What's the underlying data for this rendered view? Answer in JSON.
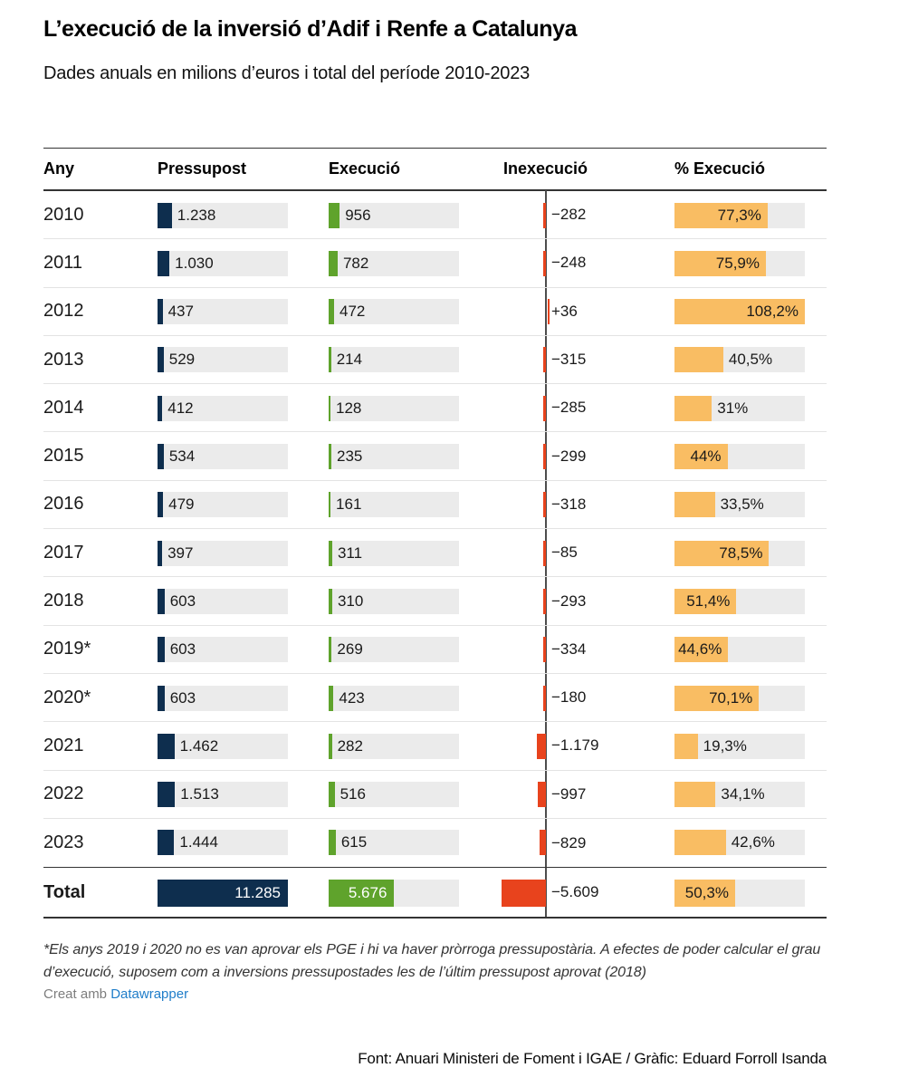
{
  "header": {
    "title": "L’execució de la inversió d’Adif i Renfe a Catalunya",
    "subtitle": "Dades anuals en milions d’euros i total del període 2010-2023"
  },
  "table": {
    "columns": [
      "Any",
      "Pressupost",
      "Execució",
      "Inexecució",
      "% Execució"
    ],
    "rows": [
      {
        "any": "2010",
        "pressupost_label": "1.238",
        "pressupost": 1238,
        "execucio_label": "956",
        "execucio": 956,
        "inexecucio_label": "−282",
        "inexecucio": -282,
        "pct_label": "77,3%",
        "pct": 77.3
      },
      {
        "any": "2011",
        "pressupost_label": "1.030",
        "pressupost": 1030,
        "execucio_label": "782",
        "execucio": 782,
        "inexecucio_label": "−248",
        "inexecucio": -248,
        "pct_label": "75,9%",
        "pct": 75.9
      },
      {
        "any": "2012",
        "pressupost_label": "437",
        "pressupost": 437,
        "execucio_label": "472",
        "execucio": 472,
        "inexecucio_label": "+36",
        "inexecucio": 36,
        "pct_label": "108,2%",
        "pct": 108.2
      },
      {
        "any": "2013",
        "pressupost_label": "529",
        "pressupost": 529,
        "execucio_label": "214",
        "execucio": 214,
        "inexecucio_label": "−315",
        "inexecucio": -315,
        "pct_label": "40,5%",
        "pct": 40.5
      },
      {
        "any": "2014",
        "pressupost_label": "412",
        "pressupost": 412,
        "execucio_label": "128",
        "execucio": 128,
        "inexecucio_label": "−285",
        "inexecucio": -285,
        "pct_label": "31%",
        "pct": 31
      },
      {
        "any": "2015",
        "pressupost_label": "534",
        "pressupost": 534,
        "execucio_label": "235",
        "execucio": 235,
        "inexecucio_label": "−299",
        "inexecucio": -299,
        "pct_label": "44%",
        "pct": 44
      },
      {
        "any": "2016",
        "pressupost_label": "479",
        "pressupost": 479,
        "execucio_label": "161",
        "execucio": 161,
        "inexecucio_label": "−318",
        "inexecucio": -318,
        "pct_label": "33,5%",
        "pct": 33.5
      },
      {
        "any": "2017",
        "pressupost_label": "397",
        "pressupost": 397,
        "execucio_label": "311",
        "execucio": 311,
        "inexecucio_label": "−85",
        "inexecucio": -85,
        "pct_label": "78,5%",
        "pct": 78.5
      },
      {
        "any": "2018",
        "pressupost_label": "603",
        "pressupost": 603,
        "execucio_label": "310",
        "execucio": 310,
        "inexecucio_label": "−293",
        "inexecucio": -293,
        "pct_label": "51,4%",
        "pct": 51.4
      },
      {
        "any": "2019*",
        "pressupost_label": "603",
        "pressupost": 603,
        "execucio_label": "269",
        "execucio": 269,
        "inexecucio_label": "−334",
        "inexecucio": -334,
        "pct_label": "44,6%",
        "pct": 44.6
      },
      {
        "any": "2020*",
        "pressupost_label": "603",
        "pressupost": 603,
        "execucio_label": "423",
        "execucio": 423,
        "inexecucio_label": "−180",
        "inexecucio": -180,
        "pct_label": "70,1%",
        "pct": 70.1
      },
      {
        "any": "2021",
        "pressupost_label": "1.462",
        "pressupost": 1462,
        "execucio_label": "282",
        "execucio": 282,
        "inexecucio_label": "−1.179",
        "inexecucio": -1179,
        "pct_label": "19,3%",
        "pct": 19.3
      },
      {
        "any": "2022",
        "pressupost_label": "1.513",
        "pressupost": 1513,
        "execucio_label": "516",
        "execucio": 516,
        "inexecucio_label": "−997",
        "inexecucio": -997,
        "pct_label": "34,1%",
        "pct": 34.1
      },
      {
        "any": "2023",
        "pressupost_label": "1.444",
        "pressupost": 1444,
        "execucio_label": "615",
        "execucio": 615,
        "inexecucio_label": "−829",
        "inexecucio": -829,
        "pct_label": "42,6%",
        "pct": 42.6
      }
    ],
    "total": {
      "any": "Total",
      "pressupost_label": "11.285",
      "pressupost": 11285,
      "execucio_label": "5.676",
      "execucio": 5676,
      "inexecucio_label": "−5.609",
      "inexecucio": -5609,
      "pct_label": "50,3%",
      "pct": 50.3
    }
  },
  "scale": {
    "bar_max": 11285,
    "inexec_abs_max": 5609,
    "pct_max": 108.2
  },
  "colors": {
    "navy": "#0e2e4e",
    "green": "#5fa32c",
    "red": "#e8431d",
    "orange": "#f9bd63",
    "cell_bg": "#ebebeb",
    "rule_dark": "#333333",
    "separator": "#e3e3e3",
    "axis": "#4d4d4d",
    "link_blue": "#1f7dc9"
  },
  "footnote": "*Els anys 2019 i 2020 no es van aprovar els PGE i hi va haver pròrroga pressupostària. A efectes de poder calcular el grau d’execució, suposem com a inversions pressupostades les de l’últim pressupost aprovat (2018)",
  "attribution": {
    "prefix": "Creat amb ",
    "link_label": "Datawrapper"
  },
  "source": "Font: Anuari Ministeri de Foment i IGAE / Gràfic: Eduard Forroll Isanda",
  "chart_data": {
    "type": "table",
    "title": "L’execució de la inversió d’Adif i Renfe a Catalunya",
    "subtitle": "Dades anuals en milions d’euros i total del període 2010-2023",
    "categories": [
      "2010",
      "2011",
      "2012",
      "2013",
      "2014",
      "2015",
      "2016",
      "2017",
      "2018",
      "2019*",
      "2020*",
      "2021",
      "2022",
      "2023",
      "Total"
    ],
    "series": [
      {
        "name": "Pressupost",
        "values": [
          1238,
          1030,
          437,
          529,
          412,
          534,
          479,
          397,
          603,
          603,
          603,
          1462,
          1513,
          1444,
          11285
        ]
      },
      {
        "name": "Execució",
        "values": [
          956,
          782,
          472,
          214,
          128,
          235,
          161,
          311,
          310,
          269,
          423,
          282,
          516,
          615,
          5676
        ]
      },
      {
        "name": "Inexecució",
        "values": [
          -282,
          -248,
          36,
          -315,
          -285,
          -299,
          -318,
          -85,
          -293,
          -334,
          -180,
          -1179,
          -997,
          -829,
          -5609
        ]
      },
      {
        "name": "% Execució",
        "values": [
          77.3,
          75.9,
          108.2,
          40.5,
          31,
          44,
          33.5,
          78.5,
          51.4,
          44.6,
          70.1,
          19.3,
          34.1,
          42.6,
          50.3
        ]
      }
    ],
    "layout_hints": {
      "bar_columns_shared_max": 11285,
      "inexecucio_axis_zero_line": true,
      "pct_column_max": 108.2,
      "units": "milions d’euros"
    }
  }
}
